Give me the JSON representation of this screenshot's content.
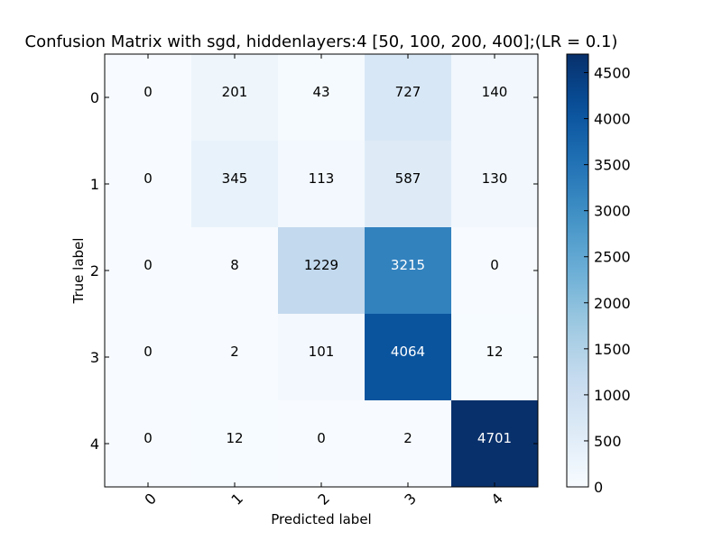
{
  "chart_data": {
    "type": "heatmap",
    "title": "Confusion Matrix with sgd, hiddenlayers:4 [50, 100, 200, 400];(LR = 0.1)",
    "xlabel": "Predicted label",
    "ylabel": "True label",
    "x_categories": [
      "0",
      "1",
      "2",
      "3",
      "4"
    ],
    "y_categories": [
      "0",
      "1",
      "2",
      "3",
      "4"
    ],
    "matrix": [
      [
        0,
        201,
        43,
        727,
        140
      ],
      [
        0,
        345,
        113,
        587,
        130
      ],
      [
        0,
        8,
        1229,
        3215,
        0
      ],
      [
        0,
        2,
        101,
        4064,
        12
      ],
      [
        0,
        12,
        0,
        2,
        4701
      ]
    ],
    "colormap": "Blues",
    "value_range": [
      0,
      4701
    ],
    "colorbar": {
      "ticks": [
        0,
        500,
        1000,
        1500,
        2000,
        2500,
        3000,
        3500,
        4000,
        4500
      ],
      "tick_labels": [
        "0",
        "500",
        "1000",
        "1500",
        "2000",
        "2500",
        "3000",
        "3500",
        "4000",
        "4500"
      ]
    },
    "x_tick_rotation": 45,
    "grid": false,
    "colors": {
      "low": "#f7fbff",
      "high": "#08306b",
      "text_dark": "#000000",
      "text_light": "#ffffff"
    }
  }
}
